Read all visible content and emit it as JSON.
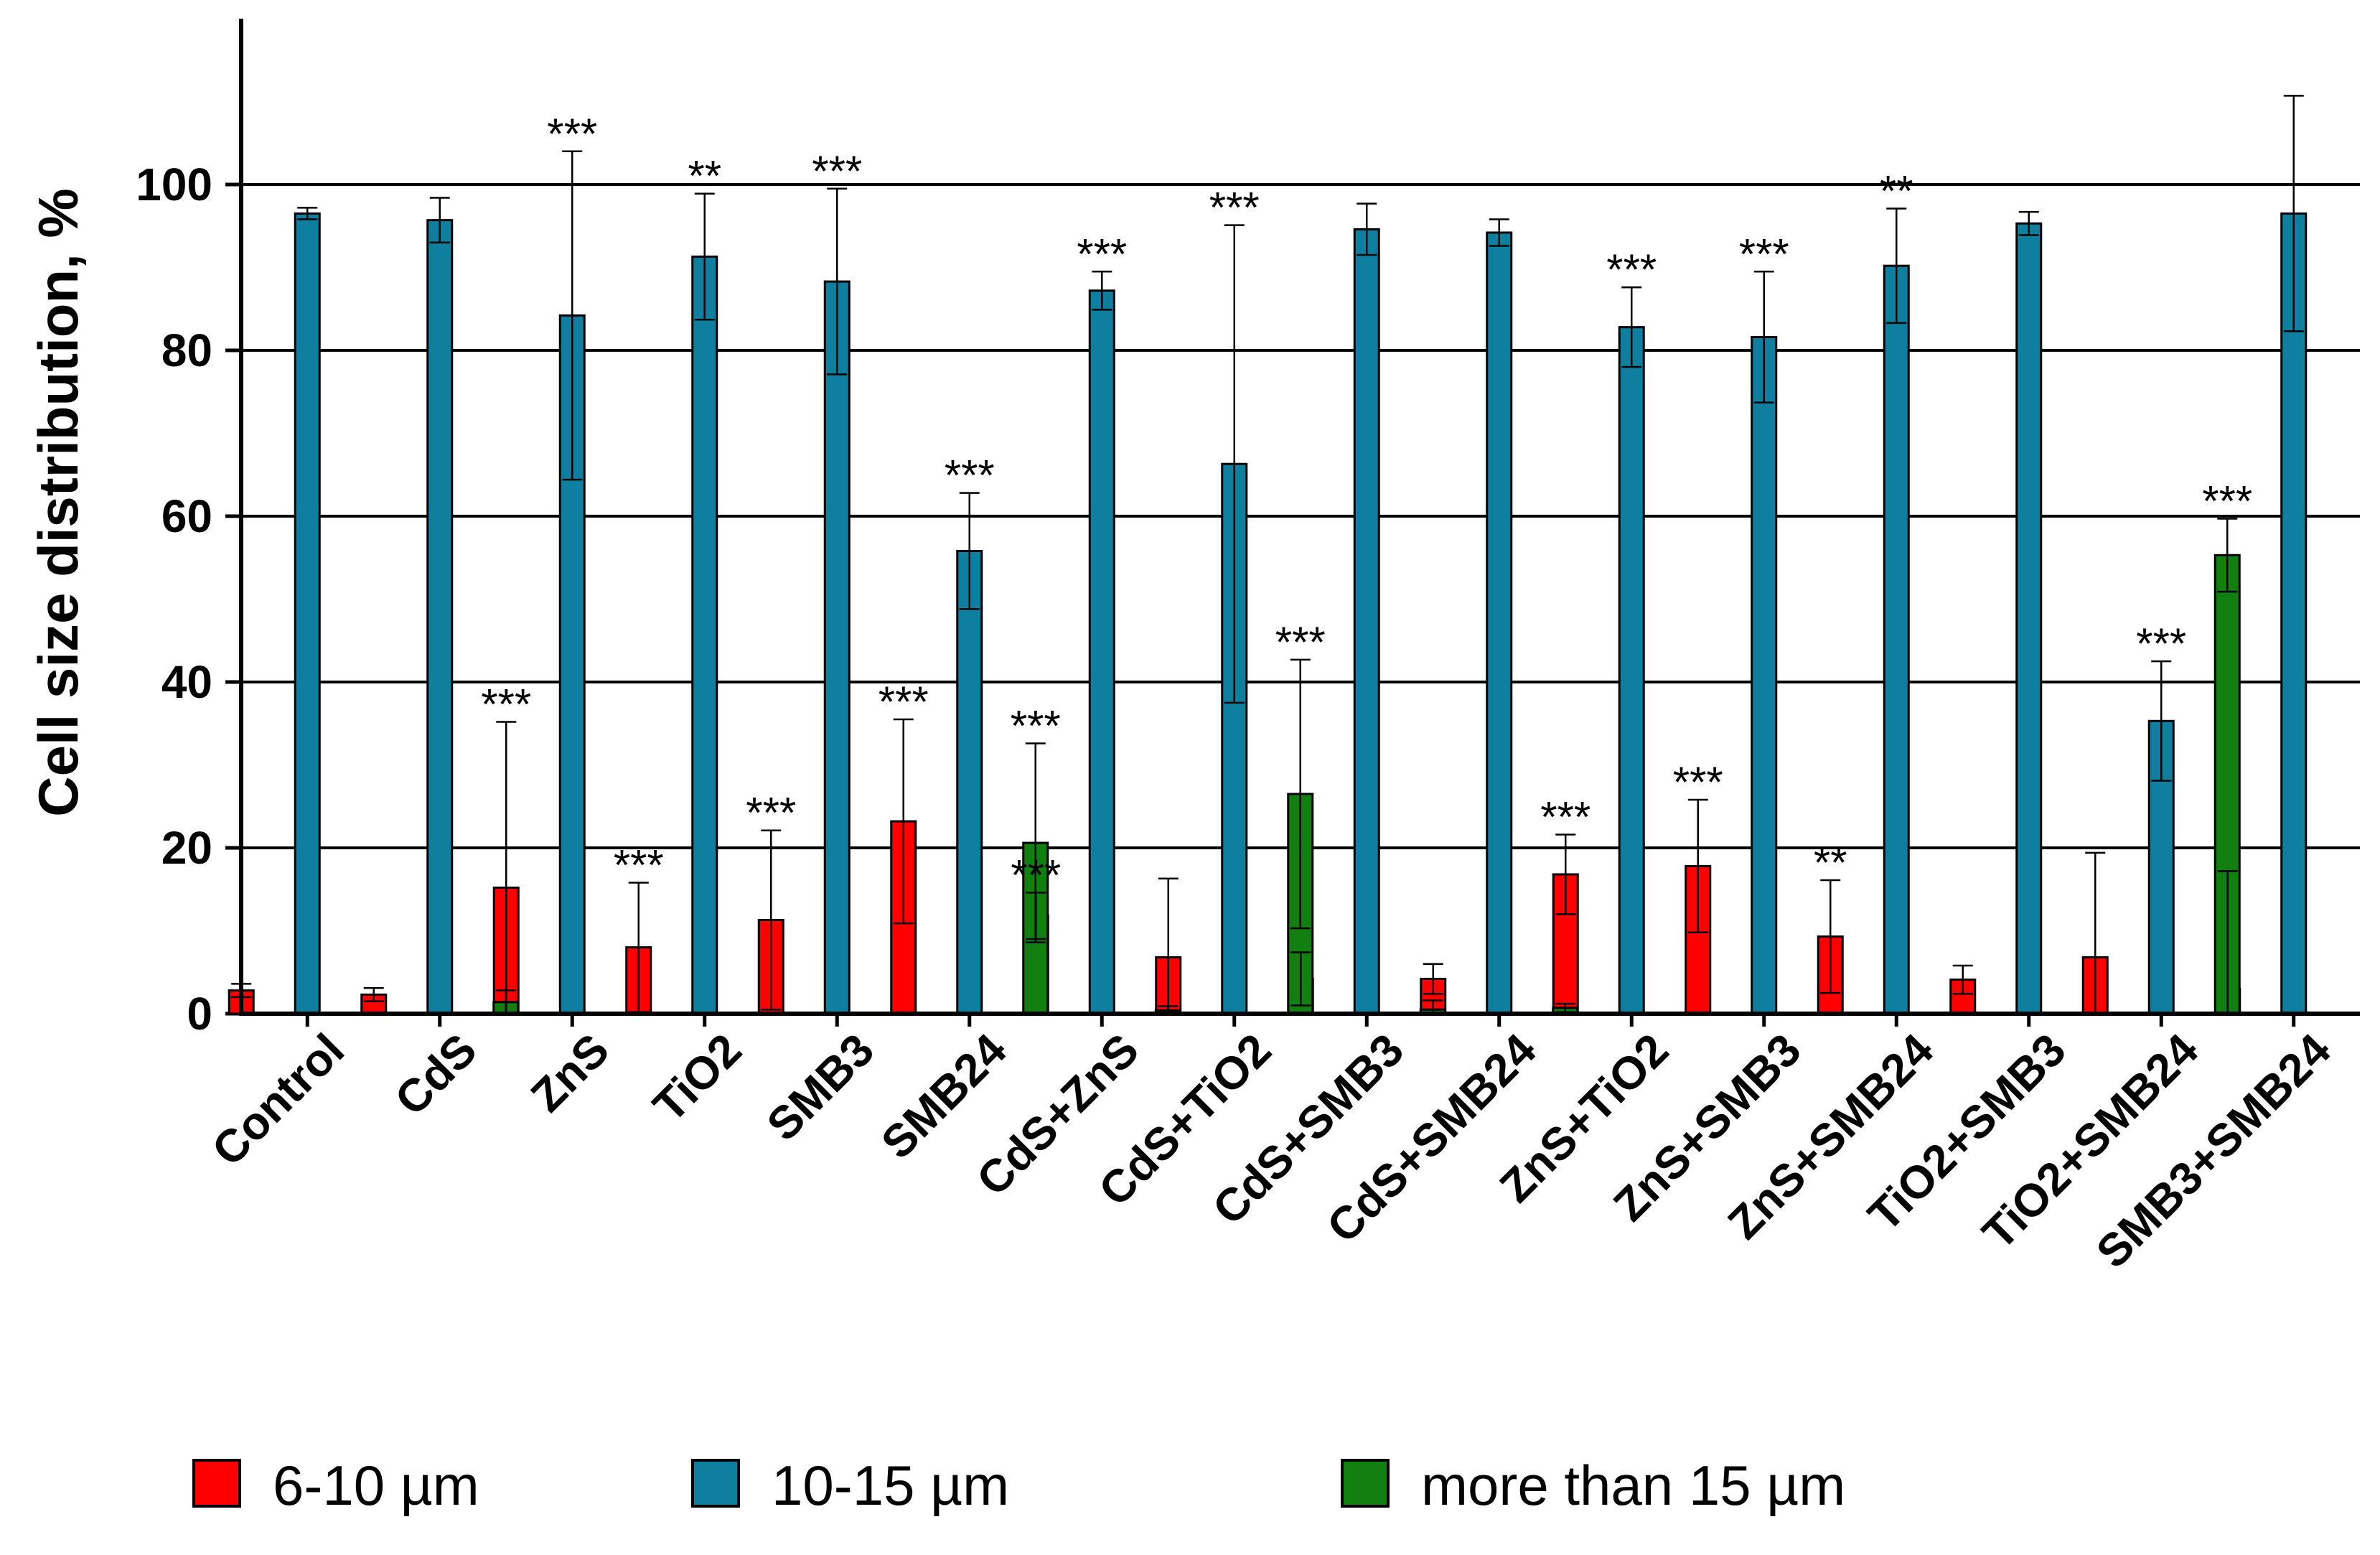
{
  "chart_data": {
    "type": "bar",
    "title": "",
    "xlabel": "",
    "ylabel": "Cell size distribution, %",
    "ylim": [
      0,
      120
    ],
    "yticks": [
      0,
      20,
      40,
      60,
      80,
      100
    ],
    "grid": true,
    "legend_position": "bottom",
    "categories": [
      "Control",
      "CdS",
      "ZnS",
      "TiO2",
      "SMB3",
      "SMB24",
      "CdS+ZnS",
      "CdS+TiO2",
      "CdS+SMB3",
      "CdS+SMB24",
      "ZnS+TiO2",
      "ZnS+SMB3",
      "ZnS+SMB24",
      "TiO2+SMB3",
      "TiO2+SMB24",
      "SMB3+SMB24"
    ],
    "series": [
      {
        "name": "6-10 µm",
        "color": "#ff0000",
        "values": [
          2.8,
          2.3,
          15.2,
          8.0,
          11.3,
          23.2,
          11.8,
          6.8,
          4.2,
          4.2,
          16.8,
          17.8,
          9.3,
          4.1,
          6.8,
          3.0
        ],
        "errors": [
          0.8,
          0.8,
          20.0,
          7.8,
          10.8,
          12.3,
          2.8,
          9.5,
          3.2,
          1.8,
          4.8,
          8.0,
          6.8,
          1.7,
          12.6,
          14.2
        ],
        "sig": [
          "",
          "",
          "***",
          "***",
          "***",
          "***",
          "***",
          "",
          "",
          "",
          "***",
          "***",
          "**",
          "",
          "",
          ""
        ]
      },
      {
        "name": "10-15 µm",
        "color": "#0e7f9e",
        "values": [
          96.5,
          95.7,
          84.2,
          91.3,
          88.3,
          55.8,
          87.2,
          66.3,
          94.6,
          94.2,
          82.8,
          81.6,
          90.2,
          95.3,
          35.3,
          96.5
        ],
        "errors": [
          0.7,
          2.7,
          19.8,
          7.6,
          11.2,
          7.0,
          2.3,
          28.8,
          3.1,
          1.6,
          4.8,
          7.9,
          6.9,
          1.4,
          7.2,
          14.2
        ],
        "sig": [
          "",
          "",
          "***",
          "**",
          "***",
          "***",
          "***",
          "***",
          "",
          "",
          "***",
          "***",
          "**",
          "",
          "***",
          ""
        ]
      },
      {
        "name": "more than 15 µm",
        "color": "#118011",
        "values": [
          null,
          1.4,
          null,
          null,
          null,
          20.6,
          0.4,
          26.5,
          0.5,
          0.7,
          null,
          null,
          null,
          null,
          55.3,
          null
        ],
        "errors": [
          null,
          1.4,
          null,
          null,
          null,
          12.0,
          0.5,
          16.2,
          1.1,
          0.5,
          null,
          null,
          null,
          null,
          4.4,
          null
        ],
        "sig": [
          "",
          "",
          "",
          "",
          "",
          "***",
          "",
          "***",
          "",
          "",
          "",
          "",
          "",
          "",
          "***",
          ""
        ]
      }
    ]
  }
}
